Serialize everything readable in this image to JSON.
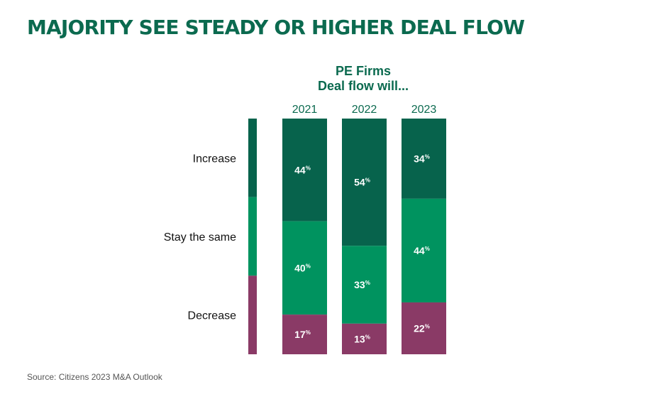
{
  "title": "MAJORITY SEE STEADY OR HIGHER DEAL FLOW",
  "source": "Source: Citizens 2023 M&A Outlook",
  "chart_data": {
    "type": "bar",
    "stacked": true,
    "normalized": true,
    "title": "PE Firms",
    "subtitle": "Deal flow will...",
    "categories": [
      "2021",
      "2022",
      "2023"
    ],
    "series": [
      {
        "name": "Increase",
        "color": "#07634c",
        "values": [
          44,
          54,
          34
        ]
      },
      {
        "name": "Stay the same",
        "color": "#00935f",
        "values": [
          40,
          33,
          44
        ]
      },
      {
        "name": "Decrease",
        "color": "#8a3a66",
        "values": [
          17,
          13,
          22
        ]
      }
    ],
    "value_suffix": "%",
    "legend_position": "left"
  }
}
